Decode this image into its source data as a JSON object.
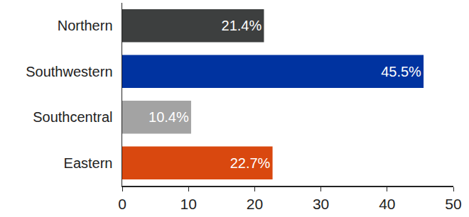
{
  "chart_data": {
    "type": "bar",
    "orientation": "horizontal",
    "categories": [
      "Northern",
      "Southwestern",
      "Southcentral",
      "Eastern"
    ],
    "values": [
      21.4,
      45.5,
      10.4,
      22.7
    ],
    "value_labels": [
      "21.4%",
      "45.5%",
      "10.4%",
      "22.7%"
    ],
    "colors": [
      "#3d3f3f",
      "#0033a0",
      "#a3a3a3",
      "#d9480f"
    ],
    "data_labels": true,
    "xlim": [
      0,
      50
    ],
    "xticks": [
      0,
      10,
      20,
      30,
      40,
      50
    ],
    "grid": false
  }
}
